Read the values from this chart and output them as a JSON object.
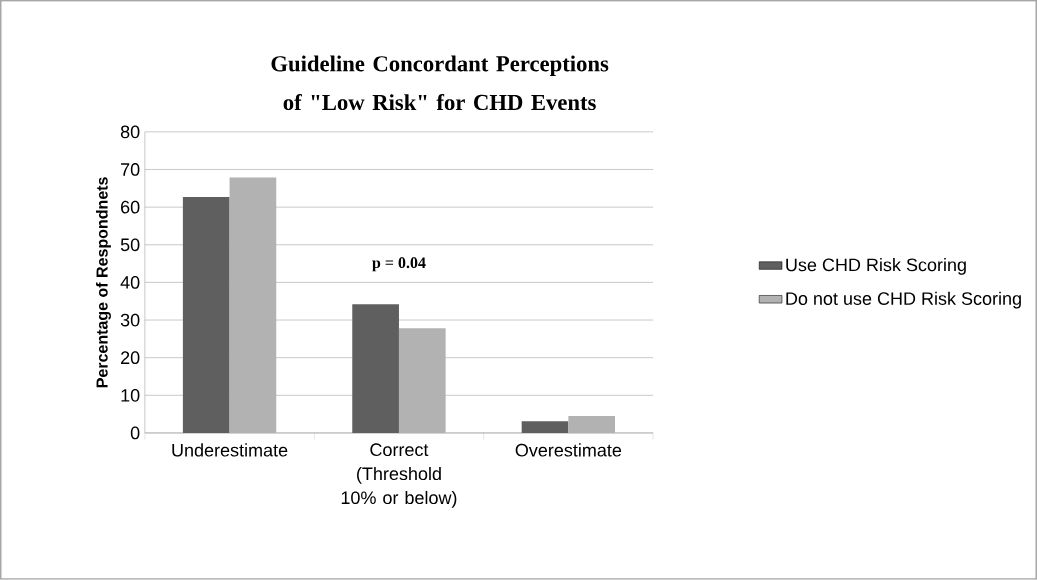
{
  "chart_data": {
    "type": "bar",
    "title": "Guideline Concordant Perceptions of \"Low Risk\" for CHD Events",
    "ylabel": "Percentage of Respondnets",
    "categories": [
      "Underestimate",
      "Correct (Threshold 10% or below)",
      "Overestimate"
    ],
    "series": [
      {
        "name": "Use CHD Risk Scoring",
        "color": "#5f5f5f",
        "values": [
          62.7,
          34.2,
          3.1
        ]
      },
      {
        "name": "Do not use CHD Risk Scoring",
        "color": "#b2b2b2",
        "values": [
          67.9,
          27.8,
          4.5
        ]
      }
    ],
    "ylim": [
      0,
      80
    ],
    "yticks": [
      0,
      10,
      20,
      30,
      40,
      50,
      60,
      70,
      80
    ],
    "grid": "y",
    "legend": "right",
    "annotations": [
      "p = 0.04"
    ]
  }
}
